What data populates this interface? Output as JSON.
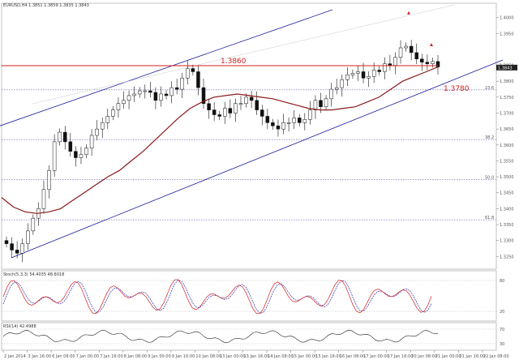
{
  "chart_data": {
    "type": "candlestick",
    "symbol_header": "EURUSD,H4 1.3851 1.3859 1.3835 1.3843",
    "price_axis": {
      "ticks": [
        "1.4000",
        "1.3950",
        "1.3850",
        "1.3800",
        "1.3750",
        "1.3700",
        "1.3650",
        "1.3600",
        "1.3550",
        "1.3500",
        "1.3450",
        "1.3400",
        "1.3350",
        "1.3300",
        "1.3250"
      ],
      "ylim": [
        1.321,
        1.4045
      ],
      "current_price": "1.3843"
    },
    "fib_levels": [
      {
        "label": "23.6",
        "price": 1.3773
      },
      {
        "label": "38.2",
        "price": 1.3617
      },
      {
        "label": "50.0",
        "price": 1.3491
      },
      {
        "label": "61.8",
        "price": 1.3365
      }
    ],
    "annotations": [
      {
        "text": "1.3860",
        "price": 1.3849,
        "color": "#d12020"
      },
      {
        "text": "1.3780",
        "price": 1.3808,
        "color": "#d12020"
      }
    ],
    "channel": {
      "color": "#1a1a9a",
      "upper": [
        [
          0,
          1.366
        ],
        [
          300,
          1.404
        ]
      ],
      "lower": [
        [
          0,
          1.3275
        ],
        [
          310,
          1.3855
        ]
      ]
    },
    "close_series": [
      1.329,
      1.327,
      1.326,
      1.329,
      1.333,
      1.337,
      1.34,
      1.346,
      1.352,
      1.361,
      1.364,
      1.361,
      1.358,
      1.356,
      1.357,
      1.359,
      1.363,
      1.365,
      1.367,
      1.369,
      1.371,
      1.373,
      1.374,
      1.3755,
      1.376,
      1.377,
      1.377,
      1.3765,
      1.374,
      1.376,
      1.3755,
      1.378,
      1.3775,
      1.381,
      1.384,
      1.383,
      1.378,
      1.373,
      1.371,
      1.3695,
      1.369,
      1.3715,
      1.37,
      1.373,
      1.373,
      1.375,
      1.374,
      1.371,
      1.369,
      1.367,
      1.366,
      1.365,
      1.367,
      1.367,
      1.3685,
      1.367,
      1.368,
      1.371,
      1.374,
      1.372,
      1.3745,
      1.3775,
      1.378,
      1.3805,
      1.382,
      1.3825,
      1.383,
      1.381,
      1.3815,
      1.3835,
      1.383,
      1.3855,
      1.385,
      1.3875,
      1.3905,
      1.391,
      1.389,
      1.387,
      1.386,
      1.3855,
      1.3862,
      1.3845
    ],
    "ma_series": [
      1.3435,
      1.3405,
      1.339,
      1.3385,
      1.339,
      1.34,
      1.3425,
      1.345,
      1.3475,
      1.35,
      1.352,
      1.355,
      1.358,
      1.3615,
      1.365,
      1.3685,
      1.3715,
      1.3735,
      1.375,
      1.3755,
      1.376,
      1.3755,
      1.375,
      1.3745,
      1.3735,
      1.3725,
      1.3715,
      1.371,
      1.371,
      1.3715,
      1.372,
      1.3735,
      1.375,
      1.3775,
      1.38,
      1.3815,
      1.383,
      1.3845
    ],
    "candle_highlights": [
      {
        "price": 1.4005,
        "color": "#d12020"
      },
      {
        "price": 1.3905,
        "color": "#d12020"
      }
    ],
    "time_ticks": [
      "2 Jan 2014",
      "3 Jan 16:00",
      "6 Jan 08:00",
      "7 Jan 00:00",
      "7 Jan 16:00",
      "8 Jan 08:00",
      "9 Jan 00:00",
      "9 Jan 16:00",
      "10 Jan 08:00",
      "13 Jan 00:00",
      "13 Jan 16:00",
      "14 Jan 08:00",
      "15 Jan 00:00",
      "15 Jan 16:00",
      "16 Jan 08:00",
      "17 Jan 00:00",
      "17 Jan 16:00",
      "20 Jan 08:00",
      "21 Jan 00:00",
      "21 Jan 16:00",
      "22 Jan 08:00"
    ],
    "stochastic": {
      "label": "Stoch(5,3,3) 54.4035 48.6018",
      "levels": [
        "80",
        "20"
      ],
      "main_color": "#d12020",
      "signal_color": "#2a2ab0"
    },
    "rsi": {
      "label": "RSI(14) 42.4988",
      "levels": [
        "70",
        "30"
      ],
      "line_color": "#222222"
    }
  }
}
